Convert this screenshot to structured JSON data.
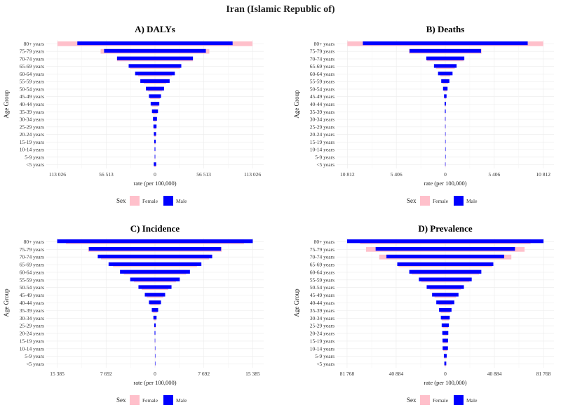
{
  "title": "Iran (Islamic Republic of)",
  "legend": {
    "title": "Sex",
    "items": [
      {
        "label": "Female",
        "color": "#ffc0cb"
      },
      {
        "label": "Male",
        "color": "#0000ff"
      }
    ]
  },
  "colors": {
    "female": "#ffc0cb",
    "male": "#0000ff",
    "grid": "#ebebeb"
  },
  "y_categories": [
    "<5 years",
    "5-9 years",
    "10-14 years",
    "15-19 years",
    "20-24 years",
    "25-29 years",
    "30-34 years",
    "35-39 years",
    "40-44 years",
    "45-49 years",
    "50-54 years",
    "55-59 years",
    "60-64 years",
    "65-69 years",
    "70-74 years",
    "75-79 years",
    "80+ years"
  ],
  "chart_data": [
    {
      "type": "bar",
      "title": "A) DALYs",
      "xlabel": "rate (per 100,000)",
      "ylabel": "Age Group",
      "xlim": [
        -126000,
        126000
      ],
      "xticks": [
        -113026,
        -56513,
        0,
        56513,
        113026
      ],
      "xtick_labels": [
        "113 026",
        "56 513",
        "0",
        "56 513",
        "113 026"
      ],
      "series": [
        {
          "name": "Female",
          "values": [
            1100,
            300,
            400,
            700,
            1000,
            1300,
            1700,
            2600,
            3800,
            5600,
            8400,
            13000,
            19500,
            29000,
            44000,
            63000,
            113026
          ]
        },
        {
          "name": "Male",
          "values": [
            1400,
            350,
            450,
            900,
            1300,
            1800,
            2300,
            3500,
            5000,
            7000,
            10500,
            17000,
            23000,
            30500,
            44000,
            59000,
            90000
          ]
        }
      ]
    },
    {
      "type": "bar",
      "title": "B) Deaths",
      "xlabel": "rate (per 100,000)",
      "ylabel": "Age Group",
      "xlim": [
        -12000,
        12000
      ],
      "xticks": [
        -10812,
        -5406,
        0,
        5406,
        10812
      ],
      "xtick_labels": [
        "10 812",
        "5 406",
        "0",
        "5 406",
        "10 812"
      ],
      "series": [
        {
          "name": "Female",
          "values": [
            15,
            5,
            5,
            8,
            10,
            14,
            20,
            30,
            55,
            90,
            160,
            300,
            550,
            1050,
            2000,
            4000,
            10812
          ]
        },
        {
          "name": "Male",
          "values": [
            20,
            6,
            6,
            10,
            14,
            20,
            28,
            45,
            80,
            140,
            250,
            450,
            800,
            1250,
            2100,
            3950,
            9100
          ]
        }
      ]
    },
    {
      "type": "bar",
      "title": "C) Incidence",
      "xlabel": "rate (per 100,000)",
      "ylabel": "Age Group",
      "xlim": [
        -17100,
        17100
      ],
      "xticks": [
        -15385,
        -7692,
        0,
        7692,
        15385
      ],
      "xtick_labels": [
        "15 385",
        "7 692",
        "0",
        "7 692",
        "15 385"
      ],
      "series": [
        {
          "name": "Female",
          "values": [
            5,
            5,
            10,
            20,
            40,
            90,
            180,
            380,
            750,
            1300,
            2100,
            3300,
            4900,
            6600,
            8500,
            10500,
            14000
          ]
        },
        {
          "name": "Male",
          "values": [
            5,
            5,
            10,
            30,
            60,
            120,
            250,
            500,
            950,
            1600,
            2600,
            3900,
            5500,
            7300,
            9000,
            10400,
            15385
          ]
        }
      ]
    },
    {
      "type": "bar",
      "title": "D) Prevalence",
      "xlabel": "rate (per 100,000)",
      "ylabel": "Age Group",
      "xlim": [
        -90500,
        90500
      ],
      "xticks": [
        -81768,
        -40884,
        0,
        40884,
        81768
      ],
      "xtick_labels": [
        "81 768",
        "40 884",
        "0",
        "40 884",
        "81 768"
      ],
      "series": [
        {
          "name": "Female",
          "values": [
            700,
            1000,
            1700,
            1900,
            2100,
            2500,
            3000,
            3900,
            5600,
            9000,
            13000,
            20000,
            28000,
            39000,
            55000,
            66000,
            71000
          ]
        },
        {
          "name": "Male",
          "values": [
            800,
            1200,
            2200,
            2300,
            2500,
            3000,
            3700,
            5200,
            7500,
            11000,
            15500,
            22000,
            30000,
            40000,
            49000,
            58000,
            81768
          ]
        }
      ]
    }
  ]
}
